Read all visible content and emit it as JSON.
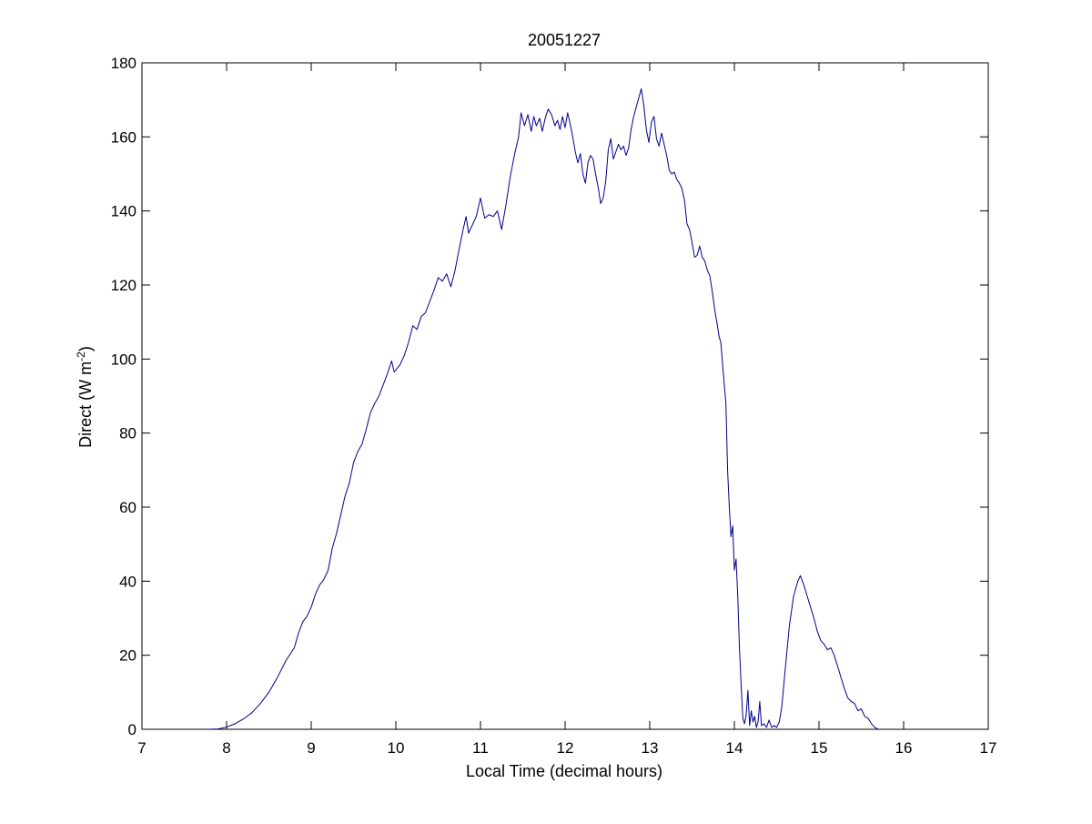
{
  "chart_data": {
    "type": "line",
    "title": "20051227",
    "xlabel": "Local Time (decimal hours)",
    "ylabel": {
      "text": "Direct (W m",
      "superscript": "-2",
      "suffix": ")"
    },
    "xlim": [
      7,
      17
    ],
    "ylim": [
      0,
      180
    ],
    "xticks": [
      7,
      8,
      9,
      10,
      11,
      12,
      13,
      14,
      15,
      16,
      17
    ],
    "yticks": [
      0,
      20,
      40,
      60,
      80,
      100,
      120,
      140,
      160,
      180
    ],
    "grid": false,
    "legend": "none",
    "series": [
      {
        "color": "#00008B",
        "points": [
          [
            7.78,
            0
          ],
          [
            7.9,
            0.1
          ],
          [
            8.0,
            0.6
          ],
          [
            8.1,
            1.5
          ],
          [
            8.2,
            2.8
          ],
          [
            8.3,
            4.5
          ],
          [
            8.4,
            7
          ],
          [
            8.5,
            10
          ],
          [
            8.6,
            14
          ],
          [
            8.7,
            18.5
          ],
          [
            8.8,
            22
          ],
          [
            8.85,
            26
          ],
          [
            8.9,
            29
          ],
          [
            8.95,
            30.5
          ],
          [
            9.0,
            33
          ],
          [
            9.05,
            36.5
          ],
          [
            9.1,
            39
          ],
          [
            9.15,
            40.5
          ],
          [
            9.2,
            43
          ],
          [
            9.25,
            49
          ],
          [
            9.3,
            53
          ],
          [
            9.35,
            58
          ],
          [
            9.4,
            63
          ],
          [
            9.45,
            66.5
          ],
          [
            9.5,
            72
          ],
          [
            9.55,
            75
          ],
          [
            9.6,
            77
          ],
          [
            9.65,
            81
          ],
          [
            9.7,
            85.5
          ],
          [
            9.75,
            88
          ],
          [
            9.8,
            90
          ],
          [
            9.85,
            93
          ],
          [
            9.9,
            96
          ],
          [
            9.95,
            99.5
          ],
          [
            9.98,
            96.5
          ],
          [
            10.05,
            98.5
          ],
          [
            10.1,
            101
          ],
          [
            10.15,
            104.5
          ],
          [
            10.2,
            109
          ],
          [
            10.25,
            108
          ],
          [
            10.3,
            111.5
          ],
          [
            10.35,
            112.5
          ],
          [
            10.4,
            115.5
          ],
          [
            10.45,
            118.5
          ],
          [
            10.5,
            122
          ],
          [
            10.55,
            121
          ],
          [
            10.6,
            123
          ],
          [
            10.65,
            119.5
          ],
          [
            10.7,
            124
          ],
          [
            10.75,
            130
          ],
          [
            10.8,
            135.5
          ],
          [
            10.83,
            138.5
          ],
          [
            10.86,
            134
          ],
          [
            10.9,
            136
          ],
          [
            10.95,
            138.5
          ],
          [
            11.0,
            143.5
          ],
          [
            11.05,
            138
          ],
          [
            11.1,
            139
          ],
          [
            11.15,
            138.5
          ],
          [
            11.2,
            140
          ],
          [
            11.25,
            135
          ],
          [
            11.3,
            141.5
          ],
          [
            11.35,
            149
          ],
          [
            11.4,
            155
          ],
          [
            11.45,
            160
          ],
          [
            11.48,
            166.5
          ],
          [
            11.52,
            163
          ],
          [
            11.56,
            166
          ],
          [
            11.6,
            161.5
          ],
          [
            11.63,
            165.5
          ],
          [
            11.66,
            163
          ],
          [
            11.7,
            165
          ],
          [
            11.73,
            161.5
          ],
          [
            11.77,
            165.5
          ],
          [
            11.8,
            167.5
          ],
          [
            11.84,
            166
          ],
          [
            11.88,
            163
          ],
          [
            11.91,
            164.5
          ],
          [
            11.94,
            162
          ],
          [
            11.97,
            165.5
          ],
          [
            12.0,
            162.5
          ],
          [
            12.03,
            166.5
          ],
          [
            12.06,
            163.5
          ],
          [
            12.09,
            160
          ],
          [
            12.12,
            156
          ],
          [
            12.15,
            153
          ],
          [
            12.18,
            155.5
          ],
          [
            12.21,
            150
          ],
          [
            12.24,
            147.5
          ],
          [
            12.27,
            153
          ],
          [
            12.3,
            155
          ],
          [
            12.33,
            154
          ],
          [
            12.36,
            150
          ],
          [
            12.39,
            146.5
          ],
          [
            12.42,
            142
          ],
          [
            12.45,
            143.5
          ],
          [
            12.48,
            148
          ],
          [
            12.51,
            156.5
          ],
          [
            12.54,
            159.5
          ],
          [
            12.57,
            154
          ],
          [
            12.6,
            156
          ],
          [
            12.63,
            158
          ],
          [
            12.66,
            156.5
          ],
          [
            12.69,
            157.5
          ],
          [
            12.72,
            155
          ],
          [
            12.75,
            157
          ],
          [
            12.78,
            162
          ],
          [
            12.81,
            165.5
          ],
          [
            12.84,
            168
          ],
          [
            12.87,
            170.5
          ],
          [
            12.9,
            173
          ],
          [
            12.93,
            168.5
          ],
          [
            12.96,
            162
          ],
          [
            12.99,
            158.5
          ],
          [
            13.02,
            164
          ],
          [
            13.05,
            165.5
          ],
          [
            13.08,
            159.5
          ],
          [
            13.11,
            157.5
          ],
          [
            13.14,
            161
          ],
          [
            13.17,
            158
          ],
          [
            13.2,
            155
          ],
          [
            13.23,
            151
          ],
          [
            13.26,
            150
          ],
          [
            13.29,
            150.5
          ],
          [
            13.32,
            148.5
          ],
          [
            13.35,
            147.5
          ],
          [
            13.38,
            146
          ],
          [
            13.41,
            143
          ],
          [
            13.44,
            136.5
          ],
          [
            13.47,
            135
          ],
          [
            13.5,
            131.5
          ],
          [
            13.53,
            127.5
          ],
          [
            13.56,
            128
          ],
          [
            13.59,
            130.5
          ],
          [
            13.62,
            127.5
          ],
          [
            13.65,
            126.5
          ],
          [
            13.68,
            124
          ],
          [
            13.71,
            122.5
          ],
          [
            13.74,
            118
          ],
          [
            13.77,
            113
          ],
          [
            13.8,
            109
          ],
          [
            13.82,
            106
          ],
          [
            13.84,
            104.5
          ],
          [
            13.87,
            96
          ],
          [
            13.9,
            88
          ],
          [
            13.92,
            70
          ],
          [
            13.94,
            60
          ],
          [
            13.96,
            52
          ],
          [
            13.98,
            55
          ],
          [
            14.0,
            43
          ],
          [
            14.02,
            46
          ],
          [
            14.04,
            36
          ],
          [
            14.06,
            22
          ],
          [
            14.08,
            12
          ],
          [
            14.1,
            3
          ],
          [
            14.12,
            1.5
          ],
          [
            14.14,
            4
          ],
          [
            14.16,
            10.5
          ],
          [
            14.18,
            1
          ],
          [
            14.2,
            5
          ],
          [
            14.22,
            2
          ],
          [
            14.24,
            3.5
          ],
          [
            14.26,
            0.5
          ],
          [
            14.28,
            2
          ],
          [
            14.3,
            7.5
          ],
          [
            14.32,
            1
          ],
          [
            14.35,
            1.5
          ],
          [
            14.38,
            0.5
          ],
          [
            14.41,
            2.5
          ],
          [
            14.44,
            0.5
          ],
          [
            14.47,
            1
          ],
          [
            14.5,
            0.5
          ],
          [
            14.53,
            2
          ],
          [
            14.56,
            6
          ],
          [
            14.6,
            16
          ],
          [
            14.65,
            28
          ],
          [
            14.7,
            36
          ],
          [
            14.75,
            40
          ],
          [
            14.78,
            41.5
          ],
          [
            14.82,
            39
          ],
          [
            14.86,
            36
          ],
          [
            14.9,
            33
          ],
          [
            14.94,
            30
          ],
          [
            14.98,
            26.5
          ],
          [
            15.02,
            24
          ],
          [
            15.06,
            23
          ],
          [
            15.1,
            21.5
          ],
          [
            15.14,
            22
          ],
          [
            15.18,
            20
          ],
          [
            15.22,
            17
          ],
          [
            15.26,
            14
          ],
          [
            15.3,
            11
          ],
          [
            15.34,
            8.5
          ],
          [
            15.38,
            7.5
          ],
          [
            15.42,
            7
          ],
          [
            15.46,
            5
          ],
          [
            15.5,
            5.5
          ],
          [
            15.54,
            3.5
          ],
          [
            15.58,
            3
          ],
          [
            15.62,
            1.5
          ],
          [
            15.66,
            0.5
          ],
          [
            15.7,
            0
          ]
        ]
      }
    ]
  }
}
